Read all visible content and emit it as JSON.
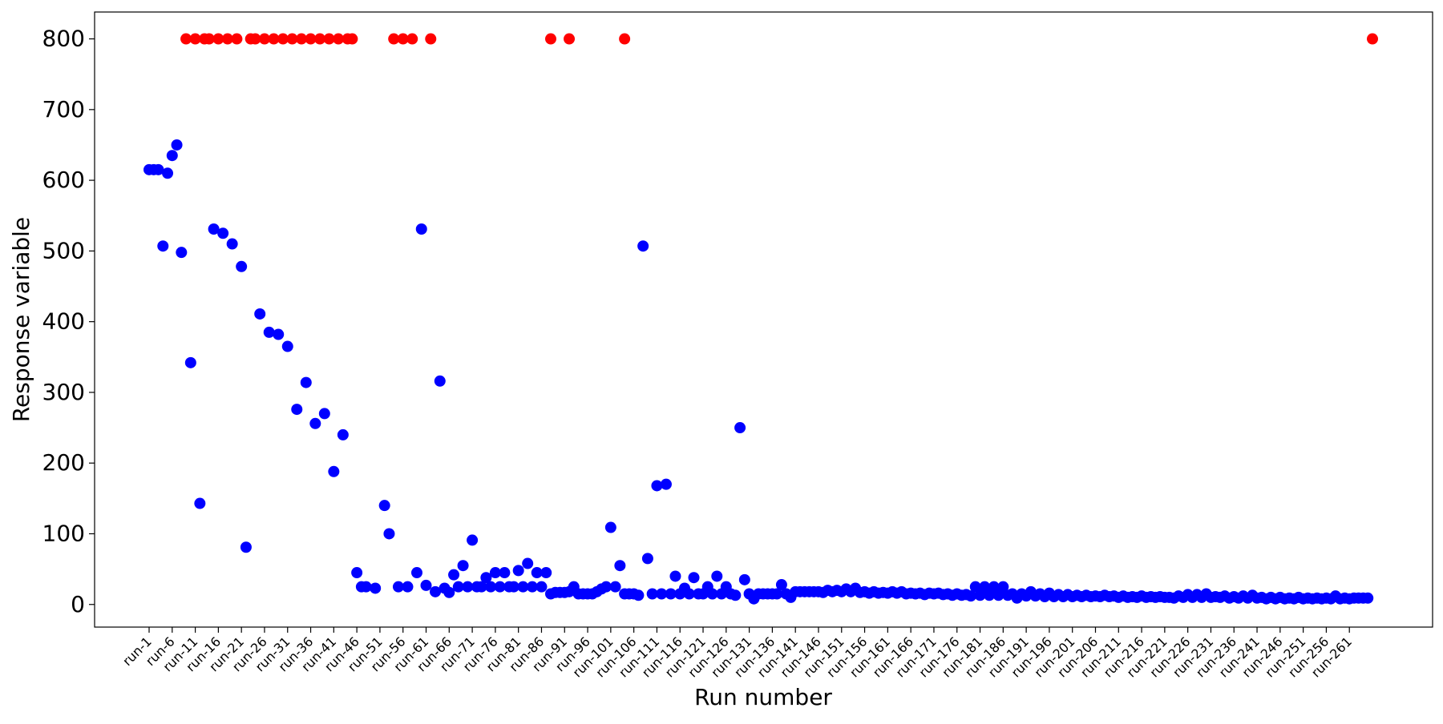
{
  "chart_data": {
    "type": "scatter",
    "title": "",
    "xlabel": "Run number",
    "ylabel": "Response variable",
    "ylim": [
      -32,
      838
    ],
    "y_ticks": [
      0,
      100,
      200,
      300,
      400,
      500,
      600,
      700,
      800
    ],
    "x_tick_every": 5,
    "x_count": 266,
    "grid": false,
    "legend": "none",
    "colors": {
      "normal": "#0000ff",
      "capped": "#ff0000",
      "frame": "#000000"
    },
    "x_tick_labels": [
      "run-1",
      "run-6",
      "run-11",
      "run-16",
      "run-21",
      "run-26",
      "run-31",
      "run-36",
      "run-41",
      "run-46",
      "run-51",
      "run-56",
      "run-61",
      "run-66",
      "run-71",
      "run-76",
      "run-81",
      "run-86",
      "run-91",
      "run-96",
      "run-101",
      "run-106",
      "run-111",
      "run-116",
      "run-121",
      "run-126",
      "run-131",
      "run-136",
      "run-141",
      "run-146",
      "run-151",
      "run-156",
      "run-161",
      "run-166",
      "run-171",
      "run-176",
      "run-181",
      "run-186",
      "run-191",
      "run-196",
      "run-201",
      "run-206",
      "run-211",
      "run-216",
      "run-221",
      "run-226",
      "run-231",
      "run-236",
      "run-241",
      "run-246",
      "run-251",
      "run-256",
      "run-261"
    ],
    "series": [
      {
        "color": "#0000ff",
        "points": [
          [
            1,
            615
          ],
          [
            2,
            615
          ],
          [
            3,
            615
          ],
          [
            4,
            507
          ],
          [
            5,
            610
          ],
          [
            6,
            635
          ],
          [
            7,
            650
          ],
          [
            8,
            498
          ],
          [
            10,
            342
          ],
          [
            12,
            143
          ],
          [
            15,
            531
          ],
          [
            17,
            525
          ],
          [
            19,
            510
          ],
          [
            21,
            478
          ],
          [
            22,
            81
          ],
          [
            25,
            411
          ],
          [
            27,
            385
          ],
          [
            29,
            382
          ],
          [
            31,
            365
          ],
          [
            33,
            276
          ],
          [
            35,
            314
          ],
          [
            37,
            256
          ],
          [
            39,
            270
          ],
          [
            41,
            188
          ],
          [
            43,
            240
          ],
          [
            46,
            45
          ],
          [
            47,
            25
          ],
          [
            48,
            25
          ],
          [
            50,
            23
          ],
          [
            52,
            140
          ],
          [
            53,
            100
          ],
          [
            55,
            25
          ],
          [
            57,
            25
          ],
          [
            59,
            45
          ],
          [
            60,
            531
          ],
          [
            61,
            27
          ],
          [
            63,
            18
          ],
          [
            64,
            316
          ],
          [
            65,
            23
          ],
          [
            66,
            17
          ],
          [
            67,
            42
          ],
          [
            68,
            25
          ],
          [
            69,
            55
          ],
          [
            70,
            25
          ],
          [
            71,
            91
          ],
          [
            72,
            25
          ],
          [
            73,
            25
          ],
          [
            74,
            38
          ],
          [
            75,
            25
          ],
          [
            76,
            45
          ],
          [
            77,
            25
          ],
          [
            78,
            45
          ],
          [
            79,
            25
          ],
          [
            80,
            25
          ],
          [
            81,
            48
          ],
          [
            82,
            25
          ],
          [
            83,
            58
          ],
          [
            84,
            25
          ],
          [
            85,
            45
          ],
          [
            86,
            25
          ],
          [
            87,
            45
          ],
          [
            88,
            15
          ],
          [
            89,
            17
          ],
          [
            90,
            17
          ],
          [
            91,
            17
          ],
          [
            92,
            18
          ],
          [
            93,
            25
          ],
          [
            94,
            15
          ],
          [
            95,
            15
          ],
          [
            96,
            15
          ],
          [
            97,
            15
          ],
          [
            98,
            18
          ],
          [
            99,
            22
          ],
          [
            100,
            25
          ],
          [
            101,
            109
          ],
          [
            102,
            25
          ],
          [
            103,
            55
          ],
          [
            104,
            15
          ],
          [
            105,
            15
          ],
          [
            106,
            15
          ],
          [
            107,
            13
          ],
          [
            108,
            507
          ],
          [
            109,
            65
          ],
          [
            110,
            15
          ],
          [
            111,
            168
          ],
          [
            112,
            15
          ],
          [
            113,
            170
          ],
          [
            114,
            15
          ],
          [
            115,
            40
          ],
          [
            116,
            15
          ],
          [
            117,
            23
          ],
          [
            118,
            15
          ],
          [
            119,
            38
          ],
          [
            120,
            15
          ],
          [
            121,
            15
          ],
          [
            122,
            25
          ],
          [
            123,
            15
          ],
          [
            124,
            40
          ],
          [
            125,
            15
          ],
          [
            126,
            25
          ],
          [
            127,
            15
          ],
          [
            128,
            13
          ],
          [
            129,
            250
          ],
          [
            130,
            35
          ],
          [
            131,
            15
          ],
          [
            132,
            8
          ],
          [
            133,
            15
          ],
          [
            134,
            15
          ],
          [
            135,
            15
          ],
          [
            136,
            15
          ],
          [
            137,
            15
          ],
          [
            138,
            28
          ],
          [
            139,
            15
          ],
          [
            140,
            10
          ],
          [
            141,
            18
          ],
          [
            142,
            18
          ],
          [
            143,
            18
          ],
          [
            144,
            18
          ],
          [
            145,
            18
          ],
          [
            146,
            18
          ],
          [
            147,
            17
          ],
          [
            148,
            20
          ],
          [
            149,
            18
          ],
          [
            150,
            20
          ],
          [
            151,
            18
          ],
          [
            152,
            22
          ],
          [
            153,
            18
          ],
          [
            154,
            23
          ],
          [
            155,
            17
          ],
          [
            156,
            18
          ],
          [
            157,
            16
          ],
          [
            158,
            18
          ],
          [
            159,
            16
          ],
          [
            160,
            17
          ],
          [
            161,
            16
          ],
          [
            162,
            18
          ],
          [
            163,
            16
          ],
          [
            164,
            18
          ],
          [
            165,
            15
          ],
          [
            166,
            16
          ],
          [
            167,
            15
          ],
          [
            168,
            16
          ],
          [
            169,
            14
          ],
          [
            170,
            16
          ],
          [
            171,
            15
          ],
          [
            172,
            16
          ],
          [
            173,
            14
          ],
          [
            174,
            15
          ],
          [
            175,
            13
          ],
          [
            176,
            15
          ],
          [
            177,
            13
          ],
          [
            178,
            14
          ],
          [
            179,
            12
          ],
          [
            180,
            25
          ],
          [
            181,
            13
          ],
          [
            182,
            25
          ],
          [
            183,
            13
          ],
          [
            184,
            25
          ],
          [
            185,
            13
          ],
          [
            186,
            25
          ],
          [
            187,
            13
          ],
          [
            188,
            15
          ],
          [
            189,
            9
          ],
          [
            190,
            15
          ],
          [
            191,
            12
          ],
          [
            192,
            18
          ],
          [
            193,
            12
          ],
          [
            194,
            15
          ],
          [
            195,
            11
          ],
          [
            196,
            16
          ],
          [
            197,
            11
          ],
          [
            198,
            14
          ],
          [
            199,
            11
          ],
          [
            200,
            14
          ],
          [
            201,
            11
          ],
          [
            202,
            13
          ],
          [
            203,
            11
          ],
          [
            204,
            13
          ],
          [
            205,
            11
          ],
          [
            206,
            12
          ],
          [
            207,
            11
          ],
          [
            208,
            13
          ],
          [
            209,
            11
          ],
          [
            210,
            12
          ],
          [
            211,
            10
          ],
          [
            212,
            12
          ],
          [
            213,
            10
          ],
          [
            214,
            11
          ],
          [
            215,
            10
          ],
          [
            216,
            12
          ],
          [
            217,
            10
          ],
          [
            218,
            11
          ],
          [
            219,
            10
          ],
          [
            220,
            11
          ],
          [
            221,
            10
          ],
          [
            222,
            10
          ],
          [
            223,
            9
          ],
          [
            224,
            12
          ],
          [
            225,
            10
          ],
          [
            226,
            14
          ],
          [
            227,
            10
          ],
          [
            228,
            14
          ],
          [
            229,
            10
          ],
          [
            230,
            15
          ],
          [
            231,
            10
          ],
          [
            232,
            11
          ],
          [
            233,
            10
          ],
          [
            234,
            12
          ],
          [
            235,
            9
          ],
          [
            236,
            11
          ],
          [
            237,
            9
          ],
          [
            238,
            12
          ],
          [
            239,
            9
          ],
          [
            240,
            13
          ],
          [
            241,
            9
          ],
          [
            242,
            10
          ],
          [
            243,
            8
          ],
          [
            244,
            10
          ],
          [
            245,
            8
          ],
          [
            246,
            10
          ],
          [
            247,
            8
          ],
          [
            248,
            9
          ],
          [
            249,
            8
          ],
          [
            250,
            10
          ],
          [
            251,
            8
          ],
          [
            252,
            9
          ],
          [
            253,
            8
          ],
          [
            254,
            9
          ],
          [
            255,
            8
          ],
          [
            256,
            9
          ],
          [
            257,
            8
          ],
          [
            258,
            12
          ],
          [
            259,
            8
          ],
          [
            260,
            9
          ],
          [
            261,
            8
          ],
          [
            262,
            9
          ],
          [
            263,
            9
          ],
          [
            264,
            9
          ],
          [
            265,
            9
          ]
        ]
      },
      {
        "color": "#ff0000",
        "points": [
          [
            9,
            800
          ],
          [
            11,
            800
          ],
          [
            13,
            800
          ],
          [
            14,
            800
          ],
          [
            16,
            800
          ],
          [
            18,
            800
          ],
          [
            20,
            800
          ],
          [
            23,
            800
          ],
          [
            24,
            800
          ],
          [
            26,
            800
          ],
          [
            28,
            800
          ],
          [
            30,
            800
          ],
          [
            32,
            800
          ],
          [
            34,
            800
          ],
          [
            36,
            800
          ],
          [
            38,
            800
          ],
          [
            40,
            800
          ],
          [
            42,
            800
          ],
          [
            44,
            800
          ],
          [
            45,
            800
          ],
          [
            54,
            800
          ],
          [
            56,
            800
          ],
          [
            58,
            800
          ],
          [
            62,
            800
          ],
          [
            88,
            800
          ],
          [
            92,
            800
          ],
          [
            104,
            800
          ],
          [
            266,
            800
          ]
        ]
      }
    ]
  }
}
